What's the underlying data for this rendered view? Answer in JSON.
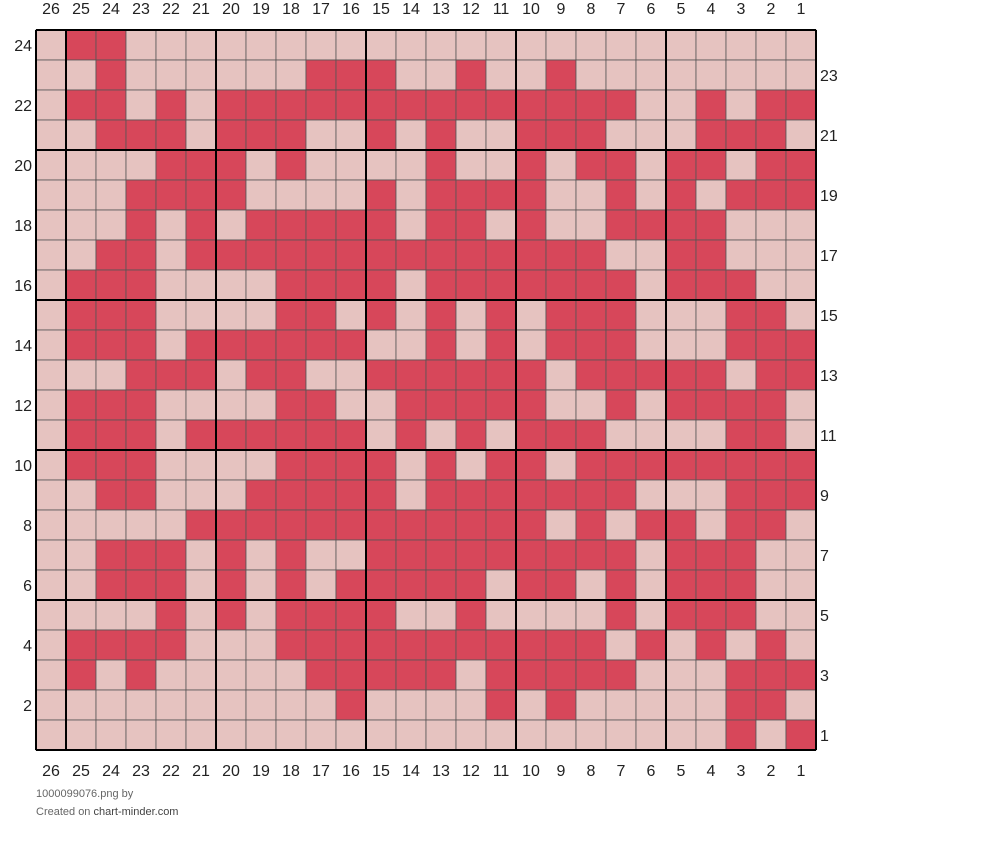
{
  "chart_data": {
    "type": "heatmap",
    "colors": {
      "filled": "#d7475a",
      "empty": "#e6c3c0",
      "line": "#555555",
      "major_line": "#000000"
    },
    "columns": 26,
    "rows": 24,
    "col_labels": [
      "26",
      "25",
      "24",
      "23",
      "22",
      "21",
      "20",
      "19",
      "18",
      "17",
      "16",
      "15",
      "14",
      "13",
      "12",
      "11",
      "10",
      "9",
      "8",
      "7",
      "6",
      "5",
      "4",
      "3",
      "2",
      "1"
    ],
    "row_labels_left": [
      "24",
      "22",
      "20",
      "18",
      "16",
      "14",
      "12",
      "10",
      "8",
      "6",
      "4",
      "2"
    ],
    "row_labels_right": [
      "23",
      "21",
      "19",
      "17",
      "15",
      "13",
      "11",
      "9",
      "7",
      "5",
      "3",
      "1"
    ],
    "grid_rows_top_to_bottom": [
      "01100000000000000000000000",
      "00100000011100100100000000",
      "01101011111111111111001011",
      "00111011100101001110001110",
      "00001110100001001011011011",
      "00011110000101111001010111",
      "00010101111101101001111000",
      "00110111111111111110011000",
      "01110000111101111111011100",
      "01110000110101010111000110",
      "01110111111001010111000111",
      "00011101100111111011111011",
      "01110000110011111001011110",
      "01110111111010101110000110",
      "01110000111101011011111111",
      "00110001111101111111000111",
      "00000111111111111010110110",
      "00111010100111111111011100",
      "00111010101111101101011100",
      "00001010111100100001011100",
      "01111000111111111110101010",
      "01010000011111011111000111",
      "00000000001000010100000110",
      "00000000000000000000000101"
    ]
  },
  "footer": {
    "filename": "1000099076.png",
    "by": "by",
    "created_on": "Created on",
    "site": "chart-minder.com"
  }
}
